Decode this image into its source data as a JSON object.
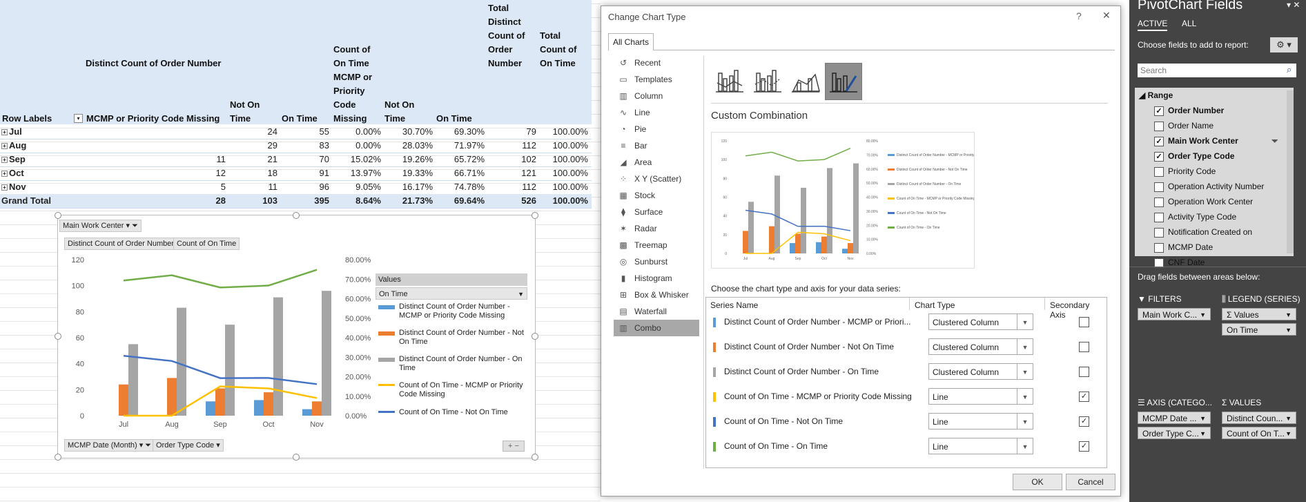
{
  "pivot": {
    "header": {
      "distinct_count": "Distinct Count of Order Number",
      "count_ontime": "Count of On Time MCMP or Priority Code Missing",
      "total_distinct": "Total Distinct Count of Order Number",
      "total_count": "Total Count of On Time",
      "row_labels": "Row Labels",
      "col_mcmp": "MCMP or Priority Code Missing",
      "col_not_on_time_1": "Not On Time",
      "col_on_time_1": "On Time",
      "col_not_on_time_2": "Not On Time",
      "col_on_time_2": "On Time"
    },
    "rows": [
      {
        "label": "Jul",
        "mcmp": "",
        "not_on_time": "24",
        "on_time": "55",
        "p_mcmp": "0.00%",
        "p_not": "30.70%",
        "p_on": "69.30%",
        "total_distinct": "79",
        "total_count": "100.00%"
      },
      {
        "label": "Aug",
        "mcmp": "",
        "not_on_time": "29",
        "on_time": "83",
        "p_mcmp": "0.00%",
        "p_not": "28.03%",
        "p_on": "71.97%",
        "total_distinct": "112",
        "total_count": "100.00%"
      },
      {
        "label": "Sep",
        "mcmp": "11",
        "not_on_time": "21",
        "on_time": "70",
        "p_mcmp": "15.02%",
        "p_not": "19.26%",
        "p_on": "65.72%",
        "total_distinct": "102",
        "total_count": "100.00%"
      },
      {
        "label": "Oct",
        "mcmp": "12",
        "not_on_time": "18",
        "on_time": "91",
        "p_mcmp": "13.97%",
        "p_not": "19.33%",
        "p_on": "66.71%",
        "total_distinct": "121",
        "total_count": "100.00%"
      },
      {
        "label": "Nov",
        "mcmp": "5",
        "not_on_time": "11",
        "on_time": "96",
        "p_mcmp": "9.05%",
        "p_not": "16.17%",
        "p_on": "74.78%",
        "total_distinct": "112",
        "total_count": "100.00%"
      }
    ],
    "grand": {
      "label": "Grand Total",
      "mcmp": "28",
      "not_on_time": "103",
      "on_time": "395",
      "p_mcmp": "8.64%",
      "p_not": "21.73%",
      "p_on": "69.64%",
      "total_distinct": "526",
      "total_count": "100.00%"
    }
  },
  "chart": {
    "filter_btn": "Main Work Center",
    "value_btn_1": "Distinct Count of Order Number",
    "value_btn_2": "Count of On Time",
    "axis_btn_1": "MCMP Date (Month)",
    "axis_btn_2": "Order Type Code",
    "legend_header": "Values",
    "legend_filter": "On Time"
  },
  "chart_data": {
    "type": "bar",
    "categories": [
      "Jul",
      "Aug",
      "Sep",
      "Oct",
      "Nov"
    ],
    "series": [
      {
        "name": "Distinct Count of Order Number - MCMP or Priority Code Missing",
        "kind": "bar",
        "axis": "primary",
        "color": "#5b9bd5",
        "values": [
          0,
          0,
          11,
          12,
          5
        ]
      },
      {
        "name": "Distinct Count of Order Number - Not On Time",
        "kind": "bar",
        "axis": "primary",
        "color": "#ed7d31",
        "values": [
          24,
          29,
          21,
          18,
          11
        ]
      },
      {
        "name": "Distinct Count of Order Number - On Time",
        "kind": "bar",
        "axis": "primary",
        "color": "#a5a5a5",
        "values": [
          55,
          83,
          70,
          91,
          96
        ]
      },
      {
        "name": "Count of On Time - MCMP or Priority Code Missing",
        "kind": "line",
        "axis": "secondary",
        "color": "#ffc000",
        "values": [
          0.0,
          0.0,
          15.02,
          13.97,
          9.05
        ]
      },
      {
        "name": "Count of On Time - Not On Time",
        "kind": "line",
        "axis": "secondary",
        "color": "#4472c4",
        "values": [
          30.7,
          28.03,
          19.26,
          19.33,
          16.17
        ]
      },
      {
        "name": "Count of On Time - On Time",
        "kind": "line",
        "axis": "secondary",
        "color": "#70ad47",
        "values": [
          69.3,
          71.97,
          65.72,
          66.71,
          74.78
        ]
      }
    ],
    "ylim": [
      0,
      120
    ],
    "yticks": [
      "0",
      "20",
      "40",
      "60",
      "80",
      "100",
      "120"
    ],
    "y2lim": [
      0,
      80
    ],
    "y2ticks": [
      "0.00%",
      "10.00%",
      "20.00%",
      "30.00%",
      "40.00%",
      "50.00%",
      "60.00%",
      "70.00%",
      "80.00%"
    ],
    "legend": "right"
  },
  "dialog": {
    "title": "Change Chart Type",
    "help": "?",
    "close": "✕",
    "tab": "All Charts",
    "categories": [
      "Recent",
      "Templates",
      "Column",
      "Line",
      "Pie",
      "Bar",
      "Area",
      "X Y (Scatter)",
      "Stock",
      "Surface",
      "Radar",
      "Treemap",
      "Sunburst",
      "Histogram",
      "Box & Whisker",
      "Waterfall",
      "Combo"
    ],
    "heading": "Custom Combination",
    "instruction": "Choose the chart type and axis for your data series:",
    "col_series": "Series Name",
    "col_type": "Chart Type",
    "col_axis": "Secondary Axis",
    "series": [
      {
        "name": "Distinct Count of Order Number - MCMP or Priori...",
        "type": "Clustered Column",
        "secondary": "",
        "color": "#5b9bd5"
      },
      {
        "name": "Distinct Count of Order Number - Not On Time",
        "type": "Clustered Column",
        "secondary": "",
        "color": "#ed7d31"
      },
      {
        "name": "Distinct Count of Order Number - On Time",
        "type": "Clustered Column",
        "secondary": "",
        "color": "#a5a5a5"
      },
      {
        "name": "Count of On Time - MCMP or Priority Code Missing",
        "type": "Line",
        "secondary": "✓",
        "color": "#ffc000"
      },
      {
        "name": "Count of On Time - Not On Time",
        "type": "Line",
        "secondary": "✓",
        "color": "#4472c4"
      },
      {
        "name": "Count of On Time - On Time",
        "type": "Line",
        "secondary": "✓",
        "color": "#70ad47"
      }
    ],
    "ok": "OK",
    "cancel": "Cancel"
  },
  "fields_pane": {
    "title": "PivotChart Fields",
    "tab_active": "ACTIVE",
    "tab_all": "ALL",
    "choose": "Choose fields to add to report:",
    "search_placeholder": "Search",
    "table": "Range",
    "fields": [
      {
        "name": "Order Number",
        "checked": "✓"
      },
      {
        "name": "Order Name",
        "checked": ""
      },
      {
        "name": "Main Work Center",
        "checked": "✓"
      },
      {
        "name": "Order Type Code",
        "checked": "✓"
      },
      {
        "name": "Priority Code",
        "checked": ""
      },
      {
        "name": "Operation Activity Number",
        "checked": ""
      },
      {
        "name": "Operation Work Center",
        "checked": ""
      },
      {
        "name": "Activity Type Code",
        "checked": ""
      },
      {
        "name": "Notification Created on",
        "checked": ""
      },
      {
        "name": "MCMP Date",
        "checked": ""
      },
      {
        "name": "CNF Date",
        "checked": ""
      }
    ],
    "drag_hint": "Drag fields between areas below:",
    "filters_label": "FILTERS",
    "legend_label": "LEGEND (SERIES)",
    "axis_label": "AXIS (CATEGO...",
    "values_label": "VALUES",
    "filters_items": [
      "Main Work C..."
    ],
    "legend_items": [
      "Values",
      "On Time"
    ],
    "axis_items": [
      "MCMP Date ...",
      "Order Type C..."
    ],
    "values_items": [
      "Distinct Coun...",
      "Count of On T..."
    ]
  }
}
